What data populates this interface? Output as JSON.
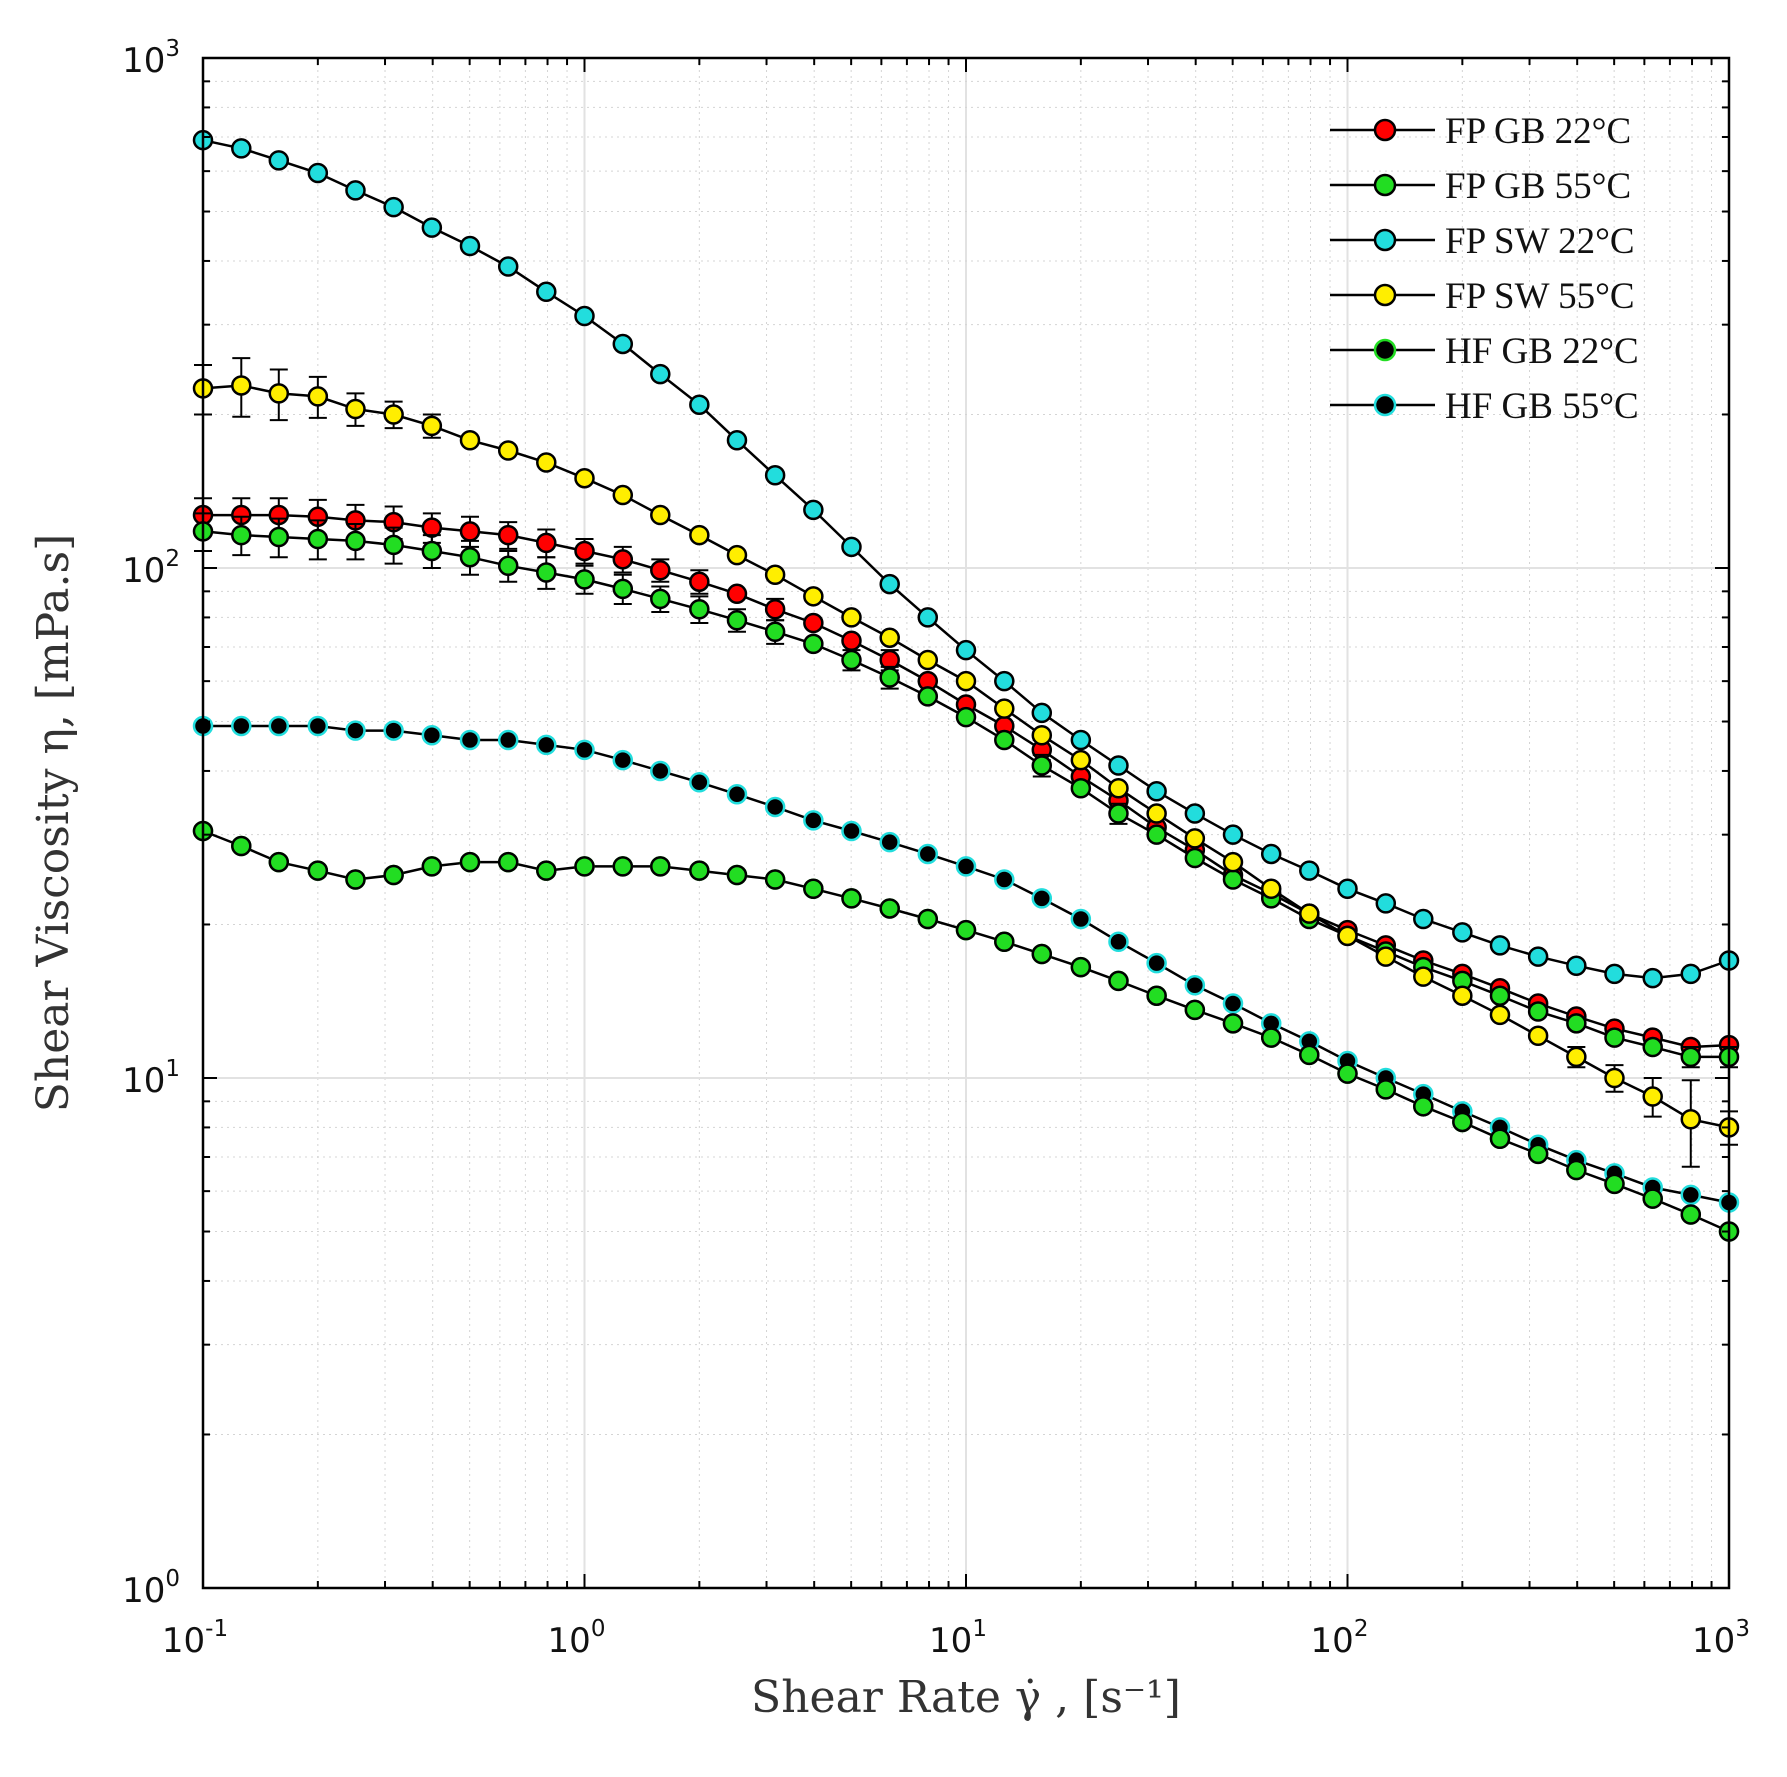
{
  "chart_data": {
    "type": "line",
    "xscale": "log",
    "yscale": "log",
    "xlim": [
      0.1,
      1000
    ],
    "ylim": [
      1,
      1000
    ],
    "grid": true,
    "legend_position": "top-right",
    "xlabel": "Shear Rate γ̇ , [s⁻¹]",
    "ylabel": "Shear Viscosity η, [mPa.s]",
    "x_ticks": [
      {
        "base": "10",
        "exp": "-1",
        "value": 0.1
      },
      {
        "base": "10",
        "exp": "0",
        "value": 1
      },
      {
        "base": "10",
        "exp": "1",
        "value": 10
      },
      {
        "base": "10",
        "exp": "2",
        "value": 100
      },
      {
        "base": "10",
        "exp": "3",
        "value": 1000
      }
    ],
    "y_ticks": [
      {
        "base": "10",
        "exp": "0",
        "value": 1
      },
      {
        "base": "10",
        "exp": "1",
        "value": 10
      },
      {
        "base": "10",
        "exp": "2",
        "value": 100
      },
      {
        "base": "10",
        "exp": "3",
        "value": 1000
      }
    ],
    "x": [
      0.1,
      0.126,
      0.158,
      0.2,
      0.251,
      0.316,
      0.398,
      0.501,
      0.631,
      0.794,
      1.0,
      1.26,
      1.58,
      2.0,
      2.51,
      3.16,
      3.98,
      5.01,
      6.31,
      7.94,
      10.0,
      12.6,
      15.8,
      20.0,
      25.1,
      31.6,
      39.8,
      50.1,
      63.1,
      79.4,
      100,
      126,
      158,
      200,
      251,
      316,
      398,
      501,
      631,
      794,
      1000
    ],
    "series": [
      {
        "name": "FP GB 22°C",
        "fill": "#ff0000",
        "edge": "#000000",
        "values": [
          127,
          127,
          127,
          126,
          124,
          123,
          120,
          118,
          116,
          112,
          108,
          104,
          99,
          94,
          89,
          83,
          78,
          72,
          66,
          60,
          54,
          49,
          44,
          39,
          35,
          31,
          28,
          25,
          23,
          21,
          19.5,
          18.2,
          17,
          16,
          15,
          14,
          13.2,
          12.5,
          12,
          11.5,
          11.6
        ],
        "err": [
          10,
          10,
          10,
          10,
          9,
          9,
          8,
          8,
          7,
          7,
          6,
          6,
          5,
          5,
          4,
          4,
          3,
          3,
          3,
          2,
          2,
          2,
          2,
          1.5,
          1.5,
          1,
          1,
          1,
          0.8,
          0.8,
          0.7,
          0.6,
          0.6,
          0.5,
          0.5,
          0.5,
          0.5,
          0.5,
          0.5,
          0.5,
          0.5
        ]
      },
      {
        "name": "FP GB 55°C",
        "fill": "#22dd22",
        "edge": "#000000",
        "values": [
          118,
          116,
          115,
          114,
          113,
          111,
          108,
          105,
          101,
          98,
          95,
          91,
          87,
          83,
          79,
          75,
          71,
          66,
          61,
          56,
          51,
          46,
          41,
          37,
          33,
          30,
          27,
          24.5,
          22.5,
          20.5,
          19,
          17.7,
          16.5,
          15.5,
          14.5,
          13.5,
          12.8,
          12,
          11.5,
          11,
          11
        ],
        "err": [
          10,
          10,
          10,
          10,
          9,
          9,
          8,
          8,
          7,
          7,
          6,
          6,
          5,
          5,
          4,
          4,
          3,
          3,
          3,
          2,
          2,
          2,
          2,
          1.5,
          1.5,
          1,
          1,
          1,
          0.8,
          0.8,
          0.7,
          0.6,
          0.6,
          0.5,
          0.5,
          0.5,
          0.5,
          0.5,
          0.5,
          0.5,
          0.5
        ]
      },
      {
        "name": "FP SW 22°C",
        "fill": "#22dddd",
        "edge": "#000000",
        "values": [
          690,
          665,
          630,
          595,
          550,
          510,
          465,
          428,
          390,
          348,
          312,
          275,
          240,
          209,
          178,
          152,
          130,
          110,
          93,
          80,
          69,
          60,
          52,
          46,
          41,
          36.5,
          33,
          30,
          27.5,
          25.5,
          23.5,
          22,
          20.5,
          19.3,
          18.2,
          17.3,
          16.6,
          16,
          15.7,
          16,
          17
        ]
      },
      {
        "name": "FP SW 55°C",
        "fill": "#ffee00",
        "edge": "#000000",
        "values": [
          225,
          228,
          220,
          217,
          205,
          200,
          190,
          178,
          170,
          161,
          150,
          139,
          127,
          116,
          106,
          97,
          88,
          80,
          73,
          66,
          60,
          53,
          47,
          42,
          37,
          33,
          29.5,
          26.5,
          23.5,
          21,
          19,
          17.3,
          15.8,
          14.5,
          13.3,
          12.1,
          11,
          10,
          9.2,
          8.3,
          8
        ],
        "err": [
          25,
          30,
          25,
          20,
          15,
          12,
          10,
          8,
          7,
          6,
          5,
          5,
          4,
          4,
          3,
          3,
          3,
          2,
          2,
          2,
          2,
          1.5,
          1.5,
          1.5,
          1,
          1,
          1,
          0.8,
          0.8,
          0.7,
          0.6,
          0.6,
          0.5,
          0.5,
          0.5,
          0.5,
          0.5,
          0.6,
          0.8,
          1.6,
          0.6
        ]
      },
      {
        "name": "HF GB 22°C",
        "fill": "#000000",
        "edge": "#22dd22",
        "values": [
          30.5,
          28.5,
          26.5,
          25.5,
          24.5,
          25,
          26,
          26.5,
          26.5,
          25.5,
          26,
          26,
          26,
          25.5,
          25,
          24.5,
          23.5,
          22.5,
          21.5,
          20.5,
          19.5,
          18.5,
          17.5,
          16.5,
          15.5,
          14.5,
          13.6,
          12.8,
          12,
          11.1,
          10.2,
          9.5,
          8.8,
          8.2,
          7.6,
          7.1,
          6.6,
          6.2,
          5.8,
          5.4,
          5
        ]
      },
      {
        "name": "HF GB 55°C",
        "fill": "#000000",
        "edge": "#22dddd",
        "values": [
          49,
          49,
          49,
          49,
          48,
          48,
          47,
          46,
          46,
          45,
          44,
          42,
          40,
          38,
          36,
          34,
          32,
          30.5,
          29,
          27.5,
          26,
          24.5,
          22.5,
          20.5,
          18.5,
          16.8,
          15.2,
          14,
          12.8,
          11.8,
          10.8,
          10,
          9.3,
          8.6,
          8,
          7.4,
          6.9,
          6.5,
          6.1,
          5.9,
          5.7
        ]
      },
      {
        "name": "HF GB 22°C",
        "fill": "#22dd22",
        "edge": "#000000",
        "values": [
          30.5,
          28.5,
          26.5,
          25.5,
          24.5,
          25,
          26,
          26.5,
          26.5,
          25.5,
          26,
          26,
          26,
          25.5,
          25,
          24.5,
          23.5,
          22.5,
          21.5,
          20.5,
          19.5,
          18.5,
          17.5,
          16.5,
          15.5,
          14.5,
          13.6,
          12.8,
          12,
          11.1,
          10.2,
          9.5,
          8.8,
          8.2,
          7.6,
          7.1,
          6.6,
          6.2,
          5.8,
          5.4,
          5
        ]
      }
    ]
  }
}
